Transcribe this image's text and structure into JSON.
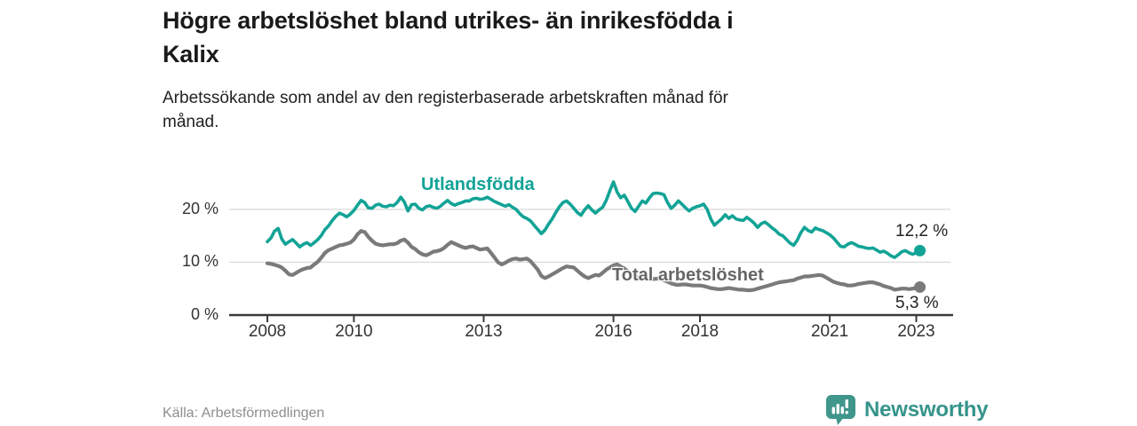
{
  "header": {
    "title": "Högre arbetslöshet bland utrikes- än inrikesfödda i\nKalix",
    "subtitle": "Arbetssökande som andel av den registerbaserade arbetskraften månad för\nmånad."
  },
  "footer": {
    "source": "Källa: Arbetsförmedlingen",
    "brand": "Newsworthy"
  },
  "colors": {
    "accent_teal": "#12A396",
    "line_gray": "#7a7a7a",
    "total_label_gray": "#666666",
    "axis": "#3a3a3a",
    "grid": "#dcdcdc",
    "brand_teal": "#3D968B"
  },
  "chart_data": {
    "type": "line",
    "title": "Högre arbetslöshet bland utrikes- än inrikesfödda i Kalix",
    "subtitle": "Arbetssökande som andel av den registerbaserade arbetskraften månad för månad.",
    "x_unit": "month",
    "x_start_year": 2008,
    "x_end": "2023-02",
    "x_ticks": [
      2008,
      2010,
      2013,
      2016,
      2018,
      2021,
      2023
    ],
    "y_ticks": [
      {
        "value": 0,
        "label": "0 %"
      },
      {
        "value": 10,
        "label": "10 %"
      },
      {
        "value": 20,
        "label": "20 %"
      }
    ],
    "y_range": [
      0,
      27
    ],
    "grid": "horizontal-only",
    "legend_position": "inline-labels",
    "source": "Arbetsförmedlingen",
    "series": [
      {
        "name": "Utlandsfödda",
        "color": "#12A396",
        "end_label": "12,2 %",
        "end_value": 12.2,
        "values": [
          13.9,
          14.6,
          15.9,
          16.4,
          14.4,
          13.4,
          13.9,
          14.3,
          13.6,
          12.9,
          13.4,
          13.7,
          13.2,
          13.7,
          14.3,
          15.1,
          16.2,
          16.9,
          17.9,
          18.7,
          19.3,
          19.0,
          18.6,
          19.1,
          19.8,
          20.8,
          21.7,
          21.3,
          20.3,
          20.2,
          20.8,
          21.0,
          20.6,
          20.5,
          20.8,
          20.7,
          21.3,
          22.3,
          21.4,
          19.7,
          20.9,
          21.0,
          20.2,
          19.9,
          20.5,
          20.7,
          20.4,
          20.2,
          20.6,
          21.2,
          21.7,
          21.1,
          20.8,
          21.1,
          21.3,
          21.6,
          21.6,
          22.0,
          22.1,
          21.9,
          22.0,
          22.3,
          21.9,
          21.5,
          21.2,
          20.9,
          20.6,
          20.9,
          20.4,
          20.0,
          19.2,
          18.6,
          18.3,
          17.8,
          17.0,
          16.2,
          15.4,
          16.1,
          17.2,
          18.2,
          19.4,
          20.5,
          21.3,
          21.6,
          21.0,
          20.2,
          19.4,
          18.9,
          19.9,
          20.7,
          19.9,
          19.3,
          19.9,
          20.4,
          21.7,
          23.5,
          25.2,
          23.3,
          22.2,
          22.7,
          21.5,
          20.2,
          19.6,
          20.6,
          21.6,
          21.2,
          22.2,
          23.0,
          23.1,
          23.0,
          22.8,
          21.3,
          20.2,
          20.8,
          21.6,
          21.0,
          20.3,
          19.7,
          20.2,
          20.5,
          20.7,
          21.0,
          20.0,
          18.2,
          17.0,
          17.6,
          18.2,
          19.0,
          18.3,
          18.8,
          18.2,
          18.0,
          17.9,
          18.5,
          18.0,
          17.4,
          16.6,
          17.3,
          17.6,
          17.1,
          16.5,
          16.0,
          15.3,
          15.0,
          14.3,
          13.6,
          13.2,
          14.2,
          15.6,
          16.6,
          16.0,
          15.7,
          16.5,
          16.2,
          16.0,
          15.6,
          15.2,
          14.6,
          13.8,
          13.0,
          12.9,
          13.4,
          13.7,
          13.4,
          13.0,
          12.9,
          12.7,
          12.6,
          12.7,
          12.3,
          11.9,
          12.1,
          11.7,
          11.2,
          10.9,
          11.4,
          12.0,
          12.2,
          11.8,
          11.5,
          11.8,
          12.2
        ]
      },
      {
        "name": "Total arbetslöshet",
        "color": "#7a7a7a",
        "end_label": "5,3 %",
        "end_value": 5.3,
        "values": [
          9.8,
          9.7,
          9.5,
          9.3,
          9.0,
          8.4,
          7.7,
          7.6,
          8.0,
          8.4,
          8.7,
          8.9,
          9.0,
          9.6,
          10.1,
          10.9,
          11.8,
          12.3,
          12.6,
          12.9,
          13.2,
          13.3,
          13.5,
          13.7,
          14.3,
          15.3,
          15.9,
          15.7,
          14.8,
          14.1,
          13.5,
          13.3,
          13.2,
          13.3,
          13.4,
          13.4,
          13.6,
          14.1,
          14.3,
          13.7,
          12.9,
          12.5,
          11.9,
          11.5,
          11.3,
          11.6,
          12.0,
          12.1,
          12.3,
          12.7,
          13.3,
          13.8,
          13.5,
          13.2,
          12.9,
          12.7,
          12.9,
          13.0,
          12.7,
          12.4,
          12.5,
          12.6,
          11.8,
          10.9,
          10.0,
          9.6,
          9.9,
          10.3,
          10.6,
          10.7,
          10.5,
          10.6,
          10.7,
          10.2,
          9.4,
          8.6,
          7.4,
          7.0,
          7.3,
          7.7,
          8.1,
          8.5,
          8.9,
          9.2,
          9.1,
          9.0,
          8.4,
          7.8,
          7.3,
          7.0,
          7.3,
          7.6,
          7.5,
          8.0,
          8.6,
          9.0,
          9.4,
          9.6,
          9.2,
          8.8,
          8.3,
          7.8,
          7.4,
          7.1,
          6.9,
          6.8,
          6.7,
          6.8,
          6.9,
          6.8,
          6.6,
          6.3,
          6.0,
          5.8,
          5.7,
          5.8,
          5.8,
          5.7,
          5.6,
          5.6,
          5.6,
          5.5,
          5.3,
          5.1,
          5.0,
          4.9,
          4.9,
          5.0,
          5.1,
          5.0,
          4.9,
          4.8,
          4.8,
          4.7,
          4.7,
          4.8,
          5.0,
          5.2,
          5.4,
          5.6,
          5.8,
          6.0,
          6.2,
          6.3,
          6.4,
          6.5,
          6.6,
          6.9,
          7.1,
          7.3,
          7.3,
          7.4,
          7.5,
          7.6,
          7.5,
          7.1,
          6.7,
          6.3,
          6.1,
          5.9,
          5.8,
          5.6,
          5.6,
          5.7,
          5.9,
          6.0,
          6.1,
          6.2,
          6.2,
          6.0,
          5.8,
          5.5,
          5.3,
          5.1,
          4.8,
          4.9,
          5.0,
          5.0,
          4.9,
          5.0,
          5.1,
          5.3
        ]
      }
    ]
  }
}
